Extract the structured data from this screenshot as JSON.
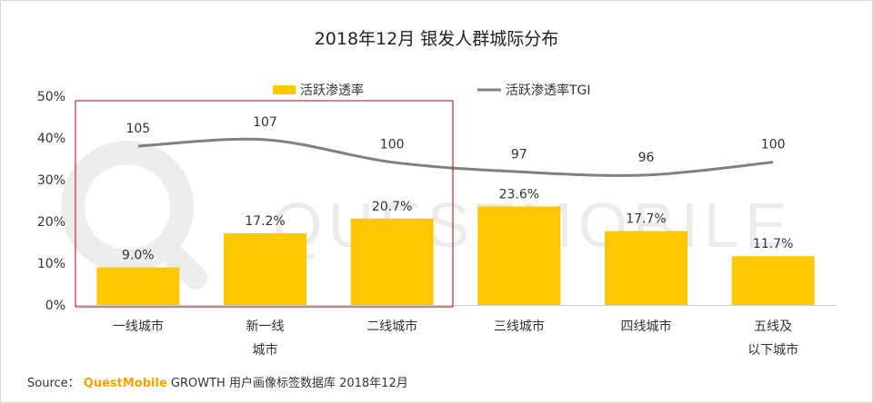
{
  "title": "2018年12月 银发人群城际分布",
  "watermark": "QUESTMOBILE",
  "source": {
    "prefix": "Source：",
    "brand": "QuestMobile",
    "rest": "GROWTH 用户画像标签数据库 2018年12月"
  },
  "colors": {
    "bar": "#ffc800",
    "line": "#808080",
    "highlight_box": "#c00000"
  },
  "chart_data": {
    "type": "bar",
    "categories": [
      [
        "一线城市"
      ],
      [
        "新一线",
        "城市"
      ],
      [
        "二线城市"
      ],
      [
        "三线城市"
      ],
      [
        "四线城市"
      ],
      [
        "五线及",
        "以下城市"
      ]
    ],
    "ylim": [
      0,
      50
    ],
    "yticks": [
      0,
      10,
      20,
      30,
      40,
      50
    ],
    "ytick_labels": [
      "0%",
      "10%",
      "20%",
      "30%",
      "40%",
      "50%"
    ],
    "legend_position": "top",
    "grid": false,
    "series": [
      {
        "name": "活跃渗透率",
        "type": "bar",
        "values": [
          9.0,
          17.2,
          20.7,
          23.6,
          17.7,
          11.7
        ],
        "labels": [
          "9.0%",
          "17.2%",
          "20.7%",
          "23.6%",
          "17.7%",
          "11.7%"
        ]
      },
      {
        "name": "活跃渗透率TGI",
        "type": "line",
        "values": [
          105,
          107,
          100,
          97,
          96,
          100
        ],
        "labels": [
          "105",
          "107",
          "100",
          "97",
          "96",
          "100"
        ]
      }
    ],
    "highlight_categories": [
      0,
      2
    ]
  }
}
